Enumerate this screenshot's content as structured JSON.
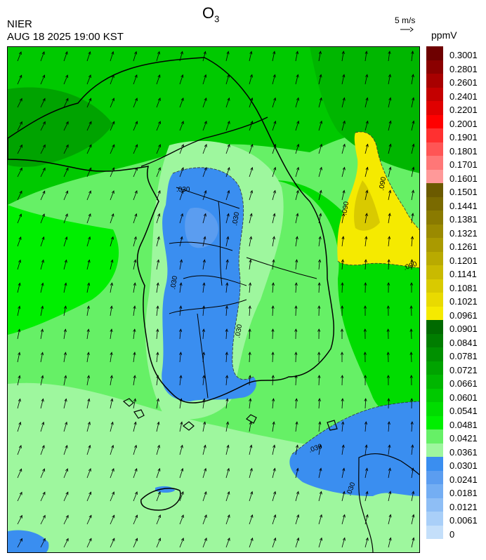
{
  "header": {
    "org": "NIER",
    "timestamp": "AUG 18 2025 19:00 KST",
    "title_main": "O",
    "title_sub": "3"
  },
  "wind_reference": {
    "label": "5 m/s"
  },
  "legend": {
    "unit": "ppmV",
    "labels": [
      "0.3001",
      "0.2801",
      "0.2601",
      "0.2401",
      "0.2201",
      "0.2001",
      "0.1901",
      "0.1801",
      "0.1701",
      "0.1601",
      "0.1501",
      "0.1441",
      "0.1381",
      "0.1321",
      "0.1261",
      "0.1201",
      "0.1141",
      "0.1081",
      "0.1021",
      "0.0961",
      "0.0901",
      "0.0841",
      "0.0781",
      "0.0721",
      "0.0661",
      "0.0601",
      "0.0541",
      "0.0481",
      "0.0421",
      "0.0361",
      "0.0301",
      "0.0241",
      "0.0181",
      "0.0121",
      "0.0061",
      "0"
    ],
    "colors": [
      "#6e0000",
      "#8b0000",
      "#a80000",
      "#c40000",
      "#e00000",
      "#ff0000",
      "#ff3030",
      "#ff5555",
      "#ff7777",
      "#ff9999",
      "#6b5a00",
      "#7a6a00",
      "#8a7a00",
      "#9a8a00",
      "#aa9a00",
      "#b9aa00",
      "#c9ba00",
      "#d9ca00",
      "#e9da00",
      "#f5ea00",
      "#006a00",
      "#007d00",
      "#009000",
      "#00a300",
      "#00b600",
      "#00c900",
      "#00dc00",
      "#00ef00",
      "#66f066",
      "#9ef79e",
      "#3a8ef0",
      "#5b9df0",
      "#74aef3",
      "#8ebef5",
      "#a9cff8",
      "#c4dffa"
    ]
  },
  "map": {
    "contour_labels": [
      ".090",
      ".090",
      ".090",
      ".030",
      ".030",
      ".030",
      ".030",
      ".030",
      ".030"
    ]
  }
}
